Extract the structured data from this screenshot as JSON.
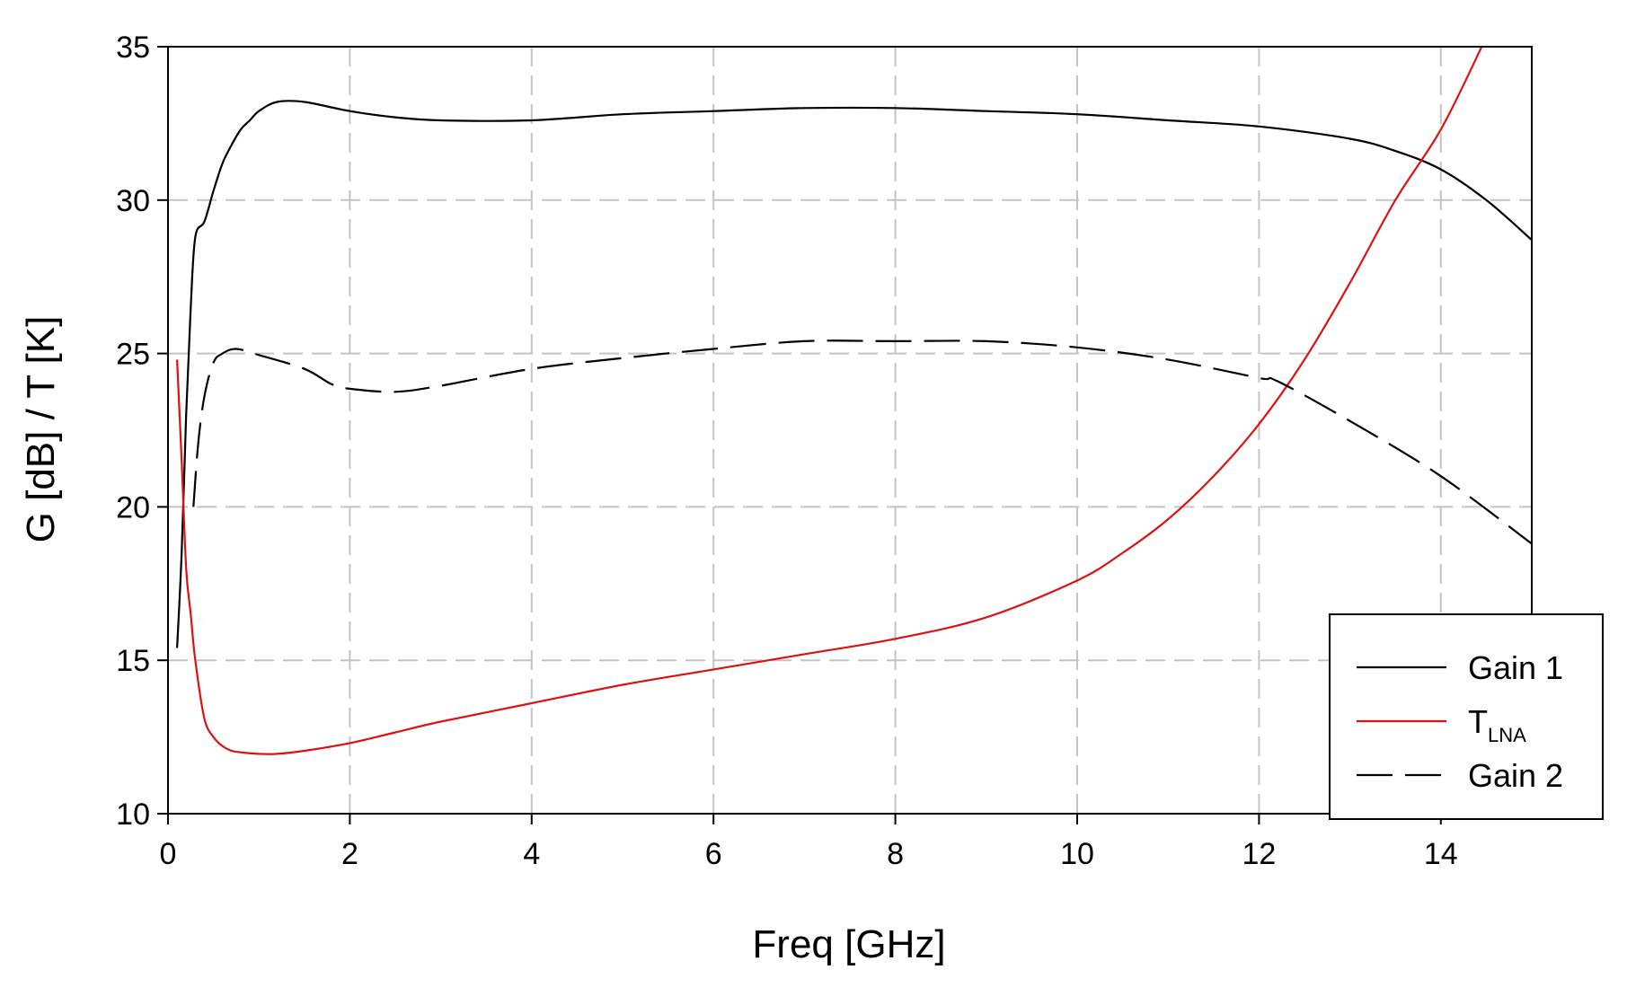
{
  "chart_data": {
    "type": "line",
    "xlabel": "Freq [GHz]",
    "ylabel": "G [dB] / T [K]",
    "xlim": [
      0,
      15
    ],
    "ylim": [
      10,
      35
    ],
    "x_ticks": [
      "0",
      "2",
      "4",
      "6",
      "8",
      "10",
      "12",
      "14"
    ],
    "y_ticks": [
      "10",
      "15",
      "20",
      "25",
      "30",
      "35"
    ],
    "grid": true,
    "legend_position": "bottom-right",
    "series": [
      {
        "name": "Gain 1",
        "legend_main": "Gain 1",
        "legend_sub": "",
        "color": "#000000",
        "style": "solid",
        "x": [
          0.1,
          0.15,
          0.2,
          0.25,
          0.3,
          0.4,
          0.5,
          0.6,
          0.7,
          0.8,
          0.9,
          1.0,
          1.2,
          1.5,
          2.0,
          2.5,
          3.0,
          4.0,
          5.0,
          6.0,
          7.0,
          8.0,
          9.0,
          10.0,
          11.0,
          12.0,
          13.0,
          13.5,
          14.0,
          14.5,
          15.0
        ],
        "y": [
          15.4,
          18.5,
          23.0,
          26.5,
          28.8,
          29.3,
          30.3,
          31.2,
          31.8,
          32.3,
          32.6,
          32.9,
          33.2,
          33.2,
          32.9,
          32.7,
          32.6,
          32.6,
          32.8,
          32.9,
          33.0,
          33.0,
          32.9,
          32.8,
          32.6,
          32.4,
          32.0,
          31.6,
          31.0,
          30.0,
          28.7
        ]
      },
      {
        "name": "TLNA",
        "legend_main": "T",
        "legend_sub": "LNA",
        "color": "#dd1111",
        "style": "solid",
        "x": [
          0.1,
          0.15,
          0.2,
          0.25,
          0.3,
          0.4,
          0.5,
          0.6,
          0.7,
          0.8,
          1.0,
          1.2,
          1.5,
          2.0,
          2.5,
          3.0,
          4.0,
          5.0,
          6.0,
          7.0,
          8.0,
          9.0,
          10.0,
          10.5,
          11.0,
          11.5,
          12.0,
          12.5,
          13.0,
          13.5,
          14.0,
          14.45
        ],
        "y": [
          24.8,
          21.5,
          18.0,
          16.5,
          15.0,
          13.1,
          12.5,
          12.2,
          12.05,
          12.0,
          11.95,
          11.95,
          12.05,
          12.3,
          12.65,
          13.0,
          13.6,
          14.2,
          14.7,
          15.2,
          15.7,
          16.4,
          17.6,
          18.5,
          19.6,
          21.0,
          22.7,
          24.8,
          27.3,
          30.0,
          32.3,
          35.0
        ]
      },
      {
        "name": "Gain 2",
        "legend_main": "Gain 2",
        "legend_sub": "",
        "color": "#000000",
        "style": "dashed",
        "x": [
          0.28,
          0.33,
          0.4,
          0.5,
          0.6,
          0.75,
          1.0,
          1.5,
          1.8,
          2.0,
          2.5,
          3.0,
          4.0,
          5.0,
          6.0,
          7.0,
          8.0,
          9.0,
          10.0,
          11.0,
          12.0,
          12.2,
          13.0,
          14.0,
          15.0
        ],
        "y": [
          20.0,
          22.0,
          23.6,
          24.7,
          25.0,
          25.15,
          24.95,
          24.5,
          24.0,
          23.85,
          23.75,
          23.95,
          24.5,
          24.85,
          25.15,
          25.4,
          25.4,
          25.4,
          25.2,
          24.8,
          24.2,
          24.1,
          22.8,
          21.0,
          18.8
        ]
      }
    ]
  }
}
